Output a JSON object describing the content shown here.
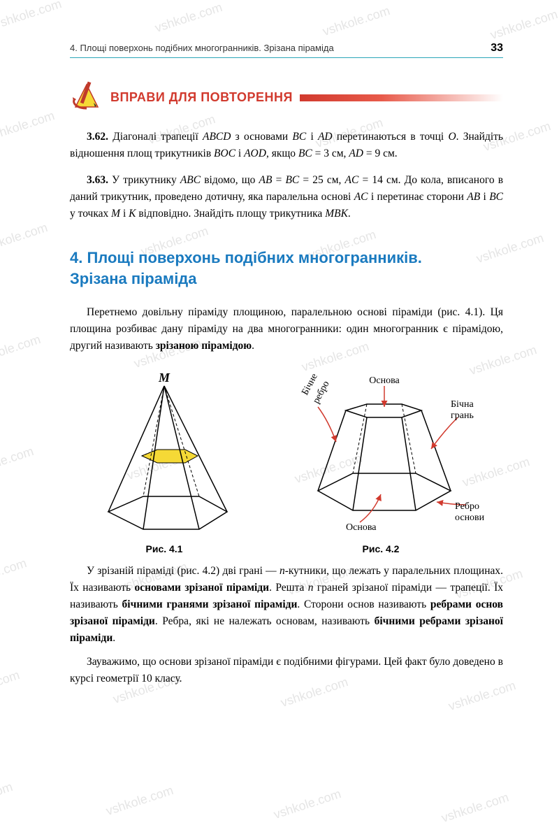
{
  "header": {
    "running": "4. Площі поверхонь подібних многогранників. Зрізана піраміда",
    "page_number": "33"
  },
  "exercises": {
    "title": "ВПРАВИ ДЛЯ ПОВТОРЕННЯ",
    "colors": {
      "title": "#d13a2e",
      "bar_gradient": [
        "#d13a2e",
        "#e85a4a"
      ]
    },
    "items": [
      {
        "num": "3.62.",
        "text_parts": [
          "Діагоналі трапеції ",
          {
            "i": "ABCD"
          },
          " з основами ",
          {
            "i": "BC"
          },
          " і ",
          {
            "i": "AD"
          },
          " перетинаються в точці ",
          {
            "i": "O"
          },
          ". Знайдіть відношення площ трикутників ",
          {
            "i": "BOC"
          },
          " і ",
          {
            "i": "AOD"
          },
          ", якщо ",
          {
            "i": "BC"
          },
          " = 3 см, ",
          {
            "i": "AD"
          },
          " = 9 см."
        ]
      },
      {
        "num": "3.63.",
        "text_parts": [
          "У трикутнику ",
          {
            "i": "ABC"
          },
          " відомо, що ",
          {
            "i": "AB"
          },
          " = ",
          {
            "i": "BC"
          },
          " = 25 см, ",
          {
            "i": "AC"
          },
          " = 14 см. До кола, вписаного в даний трикутник, проведено дотичну, яка паралельна основі ",
          {
            "i": "AC"
          },
          " і перетинає сторони ",
          {
            "i": "AB"
          },
          " і ",
          {
            "i": "BC"
          },
          " у точках ",
          {
            "i": "M"
          },
          " і ",
          {
            "i": "K"
          },
          " відповідно. Знайдіть площу трикутника ",
          {
            "i": "MBK"
          },
          "."
        ]
      }
    ]
  },
  "section": {
    "title_line1": "4. Площі поверхонь подібних многогранників.",
    "title_line2": "Зрізана піраміда",
    "color": "#1a7abf"
  },
  "paragraphs": {
    "p1_parts": [
      "Перетнемо довільну піраміду площиною, паралельною основі піраміди (рис. 4.1). Ця площина розбиває дану піраміду на два многогранники: один многогранник є пірамідою, другий називають ",
      {
        "b": "зрізаною пірамідою"
      },
      "."
    ],
    "p2_parts": [
      "У зрізаній піраміді (рис. 4.2) дві грані — ",
      {
        "i": "n"
      },
      "-кутники, що лежать у паралельних площинах. Їх називають ",
      {
        "b": "основами зрізаної піраміди"
      },
      ". Решта ",
      {
        "i": "n"
      },
      " граней зрізаної піраміди — трапеції. Їх називають ",
      {
        "b": "бічними гранями зрізаної піраміди"
      },
      ". Сторони основ називають ",
      {
        "b": "ребрами основ зрізаної піраміди"
      },
      ". Ребра, які не належать основам, називають ",
      {
        "b": "бічними ребрами зрізаної піраміди"
      },
      "."
    ],
    "p3": "Зауважимо, що основи зрізаної піраміди є подібними фігурами. Цей факт було доведено в курсі геометрії 10 класу."
  },
  "figures": {
    "fig1": {
      "caption": "Рис. 4.1",
      "apex_label": "M",
      "colors": {
        "outline": "#000000",
        "section_fill": "#f5d936",
        "dash": "#000000"
      }
    },
    "fig2": {
      "caption": "Рис. 4.2",
      "labels": {
        "top_base": "Основа",
        "bottom_base": "Основа",
        "lateral_edge": "Бічне ребро",
        "lateral_face": "Бічна грань",
        "base_edge": "Ребро основи"
      },
      "colors": {
        "outline": "#000000",
        "arrow": "#d13a2e",
        "label_text": "#000000",
        "dash": "#000000"
      }
    }
  },
  "watermark": {
    "text": "vshkole.com",
    "color": "rgba(150,150,150,0.25)",
    "angle_deg": -18,
    "font_size": 18,
    "positions": [
      [
        -10,
        10
      ],
      [
        220,
        15
      ],
      [
        460,
        20
      ],
      [
        700,
        25
      ],
      [
        -20,
        170
      ],
      [
        210,
        175
      ],
      [
        450,
        180
      ],
      [
        690,
        185
      ],
      [
        -30,
        330
      ],
      [
        200,
        335
      ],
      [
        440,
        340
      ],
      [
        680,
        345
      ],
      [
        -40,
        490
      ],
      [
        190,
        495
      ],
      [
        430,
        500
      ],
      [
        670,
        505
      ],
      [
        -50,
        650
      ],
      [
        180,
        655
      ],
      [
        420,
        660
      ],
      [
        660,
        665
      ],
      [
        -60,
        810
      ],
      [
        170,
        815
      ],
      [
        410,
        820
      ],
      [
        650,
        825
      ],
      [
        -70,
        970
      ],
      [
        160,
        975
      ],
      [
        400,
        980
      ],
      [
        640,
        985
      ],
      [
        -80,
        1130
      ],
      [
        150,
        1135
      ],
      [
        390,
        1140
      ],
      [
        630,
        1145
      ]
    ]
  }
}
